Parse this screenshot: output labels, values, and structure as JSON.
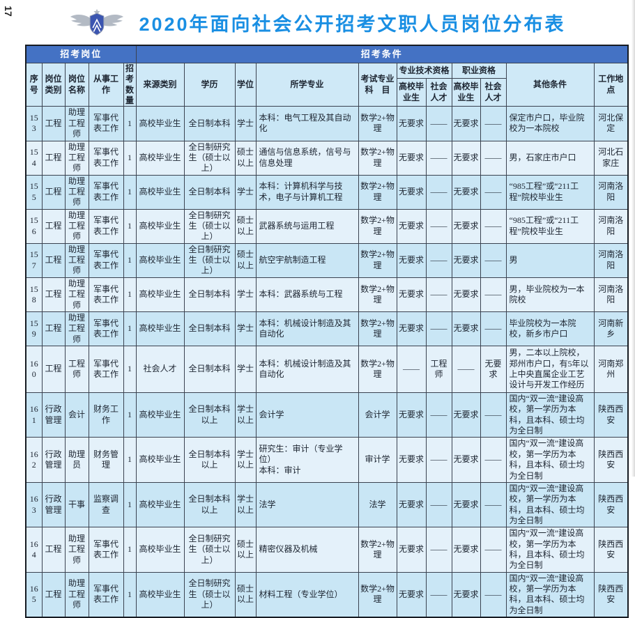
{
  "page_number": "17",
  "header": {
    "title": "2020年面向社会公开招考文职人员岗位分布表",
    "emblem": "air-force-emblem"
  },
  "colors": {
    "title_blue": "#1a8fe3",
    "band_blue": "#4472c4",
    "row_blue": "#c9e6f5",
    "row_light": "#e4f1fa",
    "header_cell_blue": "#cfe9f7",
    "grid_line": "#3a4250"
  },
  "table": {
    "group_positions": "招考岗位",
    "group_conditions": "招考条件",
    "columns": [
      "序号",
      "岗位类别",
      "岗位名称",
      "从事工作",
      "招考数量",
      "来源类别",
      "学历",
      "学位",
      "所学专业",
      "考试专业\n科　目",
      "专业技术资格",
      "职业资格",
      "其他条件",
      "工作地点"
    ],
    "sub_columns": [
      "高校毕业生",
      "社会人才",
      "高校毕业生",
      "社会人才"
    ],
    "rows": [
      [
        "153",
        "工程",
        "助理工程师",
        "军事代表工作",
        "1",
        "高校毕业生",
        "全日制本科",
        "学士",
        "本科：电气工程及其自动化",
        "数学2+物理",
        "无要求",
        "——",
        "无要求",
        "——",
        "保定市户口，毕业院校为一本院校",
        "河北保定"
      ],
      [
        "154",
        "工程",
        "助理工程师",
        "军事代表工作",
        "1",
        "高校毕业生",
        "全日制研究生（硕士以上）",
        "硕士以上",
        "通信与信息系统，信号与信息处理",
        "数学2+物理",
        "无要求",
        "——",
        "无要求",
        "——",
        "男，石家庄市户口",
        "河北石家庄"
      ],
      [
        "155",
        "工程",
        "助理工程师",
        "军事代表工作",
        "1",
        "高校毕业生",
        "全日制本科",
        "学士",
        "本科：计算机科学与技术，电子与计算机工程",
        "数学2+物理",
        "无要求",
        "——",
        "无要求",
        "——",
        "“985工程”或“211工程”院校毕业生",
        "河南洛阳"
      ],
      [
        "156",
        "工程",
        "助理工程师",
        "军事代表工作",
        "1",
        "高校毕业生",
        "全日制研究生（硕士以上）",
        "硕士以上",
        "武器系统与运用工程",
        "数学2+物理",
        "无要求",
        "——",
        "无要求",
        "——",
        "“985工程”或“211工程”院校毕业生",
        "河南洛阳"
      ],
      [
        "157",
        "工程",
        "助理工程师",
        "军事代表工作",
        "1",
        "高校毕业生",
        "全日制研究生（硕士以上）",
        "硕士以上",
        "航空宇航制造工程",
        "数学2+物理",
        "无要求",
        "——",
        "无要求",
        "——",
        "男",
        "河南洛阳"
      ],
      [
        "158",
        "工程",
        "助理工程师",
        "军事代表工作",
        "1",
        "高校毕业生",
        "全日制本科",
        "学士",
        "本科：武器系统与工程",
        "数学2+物理",
        "无要求",
        "——",
        "无要求",
        "——",
        "男，毕业院校为一本院校",
        "河南洛阳"
      ],
      [
        "159",
        "工程",
        "助理工程师",
        "军事代表工作",
        "1",
        "高校毕业生",
        "全日制本科",
        "学士",
        "本科：机械设计制造及其自动化",
        "数学2+物理",
        "无要求",
        "——",
        "无要求",
        "——",
        "毕业院校为一本院校，新乡市户口",
        "河南新乡"
      ],
      [
        "160",
        "工程",
        "工程师",
        "军事代表工作",
        "1",
        "社会人才",
        "全日制本科",
        "学士",
        "本科：机械设计制造及其自动化",
        "数学2+物理",
        "——",
        "工程师",
        "——",
        "无要求",
        "男，二本以上院校，郑州市户口，有5年以上中央直属企业工艺设计与开发工作经历",
        "河南郑州"
      ],
      [
        "161",
        "行政管理",
        "会计",
        "财务工作",
        "1",
        "高校毕业生",
        "全日制本科以上",
        "学士以上",
        "会计学",
        "会计学",
        "无要求",
        "——",
        "无要求",
        "——",
        "国内“双一流”建设高校，第一学历为本科，且本科、硕士均为全日制",
        "陕西西安"
      ],
      [
        "162",
        "行政管理",
        "助理员",
        "财务管理",
        "1",
        "高校毕业生",
        "全日制本科以上",
        "学士以上",
        "研究生：审计（专业学位）\n本科：审计",
        "审计学",
        "无要求",
        "——",
        "无要求",
        "——",
        "国内“双一流”建设高校，第一学历为本科，且本科、硕士均为全日制",
        "陕西西安"
      ],
      [
        "163",
        "行政管理",
        "干事",
        "监察调查",
        "1",
        "高校毕业生",
        "全日制本科以上",
        "学士以上",
        "法学",
        "法学",
        "无要求",
        "——",
        "无要求",
        "——",
        "国内“双一流”建设高校，第一学历为本科，且本科、硕士均为全日制",
        "陕西西安"
      ],
      [
        "164",
        "工程",
        "助理工程师",
        "军事代表工作",
        "1",
        "高校毕业生",
        "全日制研究生（硕士以上）",
        "硕士以上",
        "精密仪器及机械",
        "数学2+物理",
        "无要求",
        "——",
        "无要求",
        "——",
        "国内“双一流”建设高校，第一学历为本科，且本科、硕士均为全日制",
        "陕西西安"
      ],
      [
        "165",
        "工程",
        "助理工程师",
        "军事代表工作",
        "1",
        "高校毕业生",
        "全日制研究生（硕士以上）",
        "硕士以上",
        "材料工程（专业学位）",
        "数学2+物理",
        "无要求",
        "——",
        "无要求",
        "——",
        "国内“双一流”建设高校，第一学历为本科，且本科、硕士均为全日制",
        "陕西西安"
      ]
    ]
  }
}
